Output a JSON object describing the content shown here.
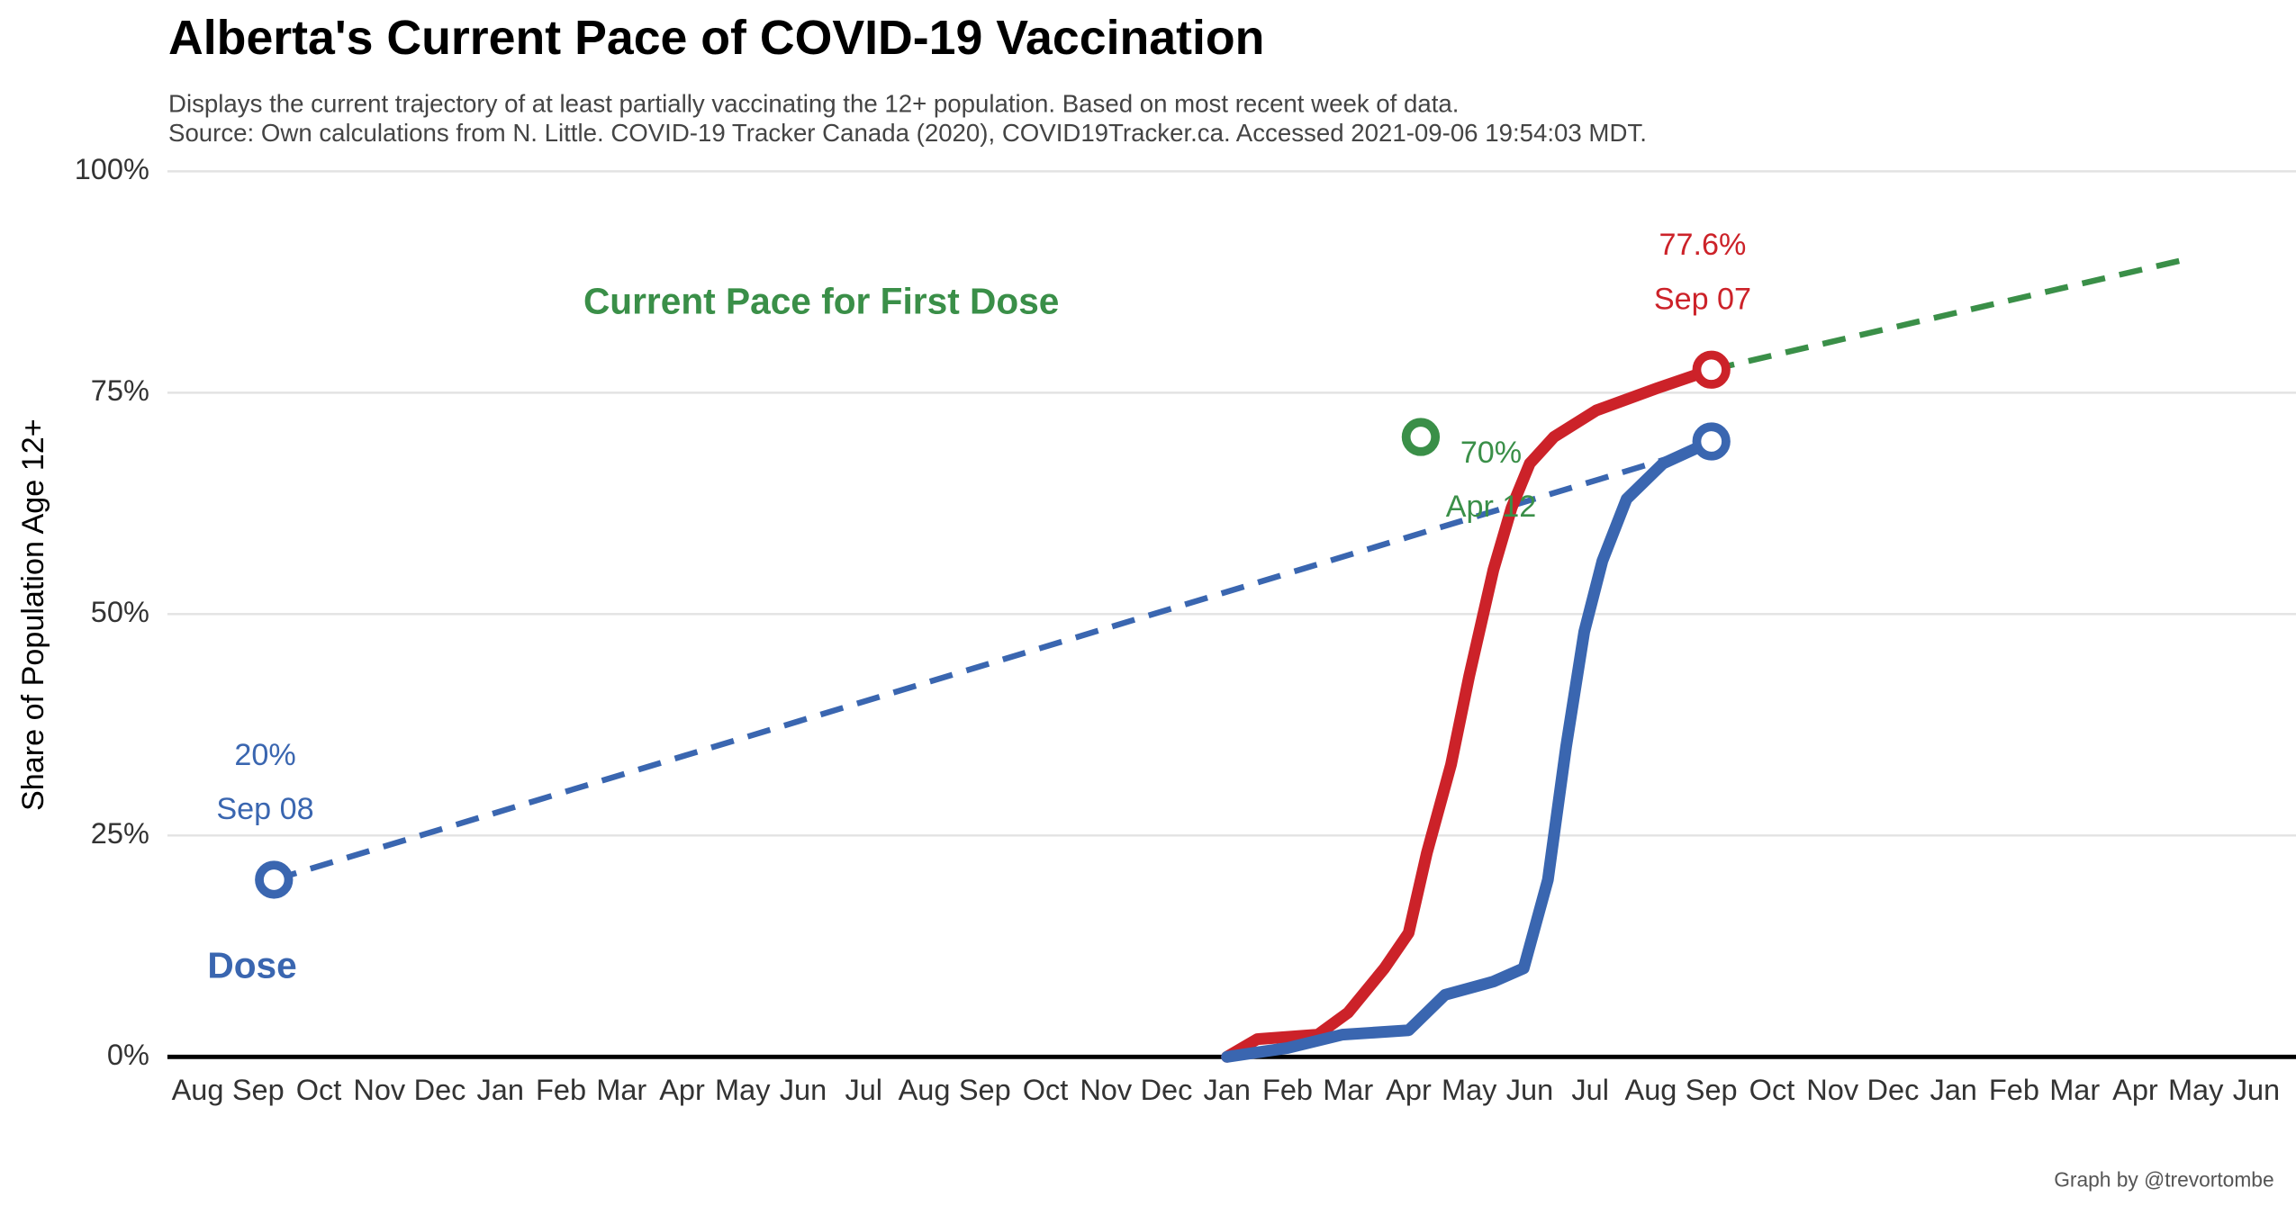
{
  "chart_data": {
    "type": "line",
    "title": "Alberta's Current Pace of COVID-19 Vaccination",
    "subtitle": [
      "Displays the current trajectory of at least partially vaccinating the 12+ population. Based on most recent week of data.",
      "Source: Own calculations from N. Little. COVID-19 Tracker Canada (2020), COVID19Tracker.ca. Accessed 2021-09-06 19:54:03 MDT."
    ],
    "y_label": "Share of Population Age 12+",
    "caption": "Graph by @trevortombe",
    "annotations": [
      {
        "text": "Current Pace for First Dose",
        "color": "#3a8f48",
        "x": 10.3,
        "y": 85
      },
      {
        "text": "Dose",
        "color": "#3a66b0",
        "x": 0.9,
        "y": 10
      }
    ],
    "xlim": [
      -0.5,
      34.9
    ],
    "ylim": [
      0,
      100
    ],
    "xticks": [
      {
        "value": 0,
        "label": "Aug"
      },
      {
        "value": 1,
        "label": "Sep"
      },
      {
        "value": 2,
        "label": "Oct"
      },
      {
        "value": 3,
        "label": "Nov"
      },
      {
        "value": 4,
        "label": "Dec"
      },
      {
        "value": 5,
        "label": "Jan"
      },
      {
        "value": 6,
        "label": "Feb"
      },
      {
        "value": 7,
        "label": "Mar"
      },
      {
        "value": 8,
        "label": "Apr"
      },
      {
        "value": 9,
        "label": "May"
      },
      {
        "value": 10,
        "label": "Jun"
      },
      {
        "value": 11,
        "label": "Jul"
      },
      {
        "value": 12,
        "label": "Aug"
      },
      {
        "value": 13,
        "label": "Sep"
      },
      {
        "value": 14,
        "label": "Oct"
      },
      {
        "value": 15,
        "label": "Nov"
      },
      {
        "value": 16,
        "label": "Dec"
      },
      {
        "value": 17,
        "label": "Jan"
      },
      {
        "value": 18,
        "label": "Feb"
      },
      {
        "value": 19,
        "label": "Mar"
      },
      {
        "value": 20,
        "label": "Apr"
      },
      {
        "value": 21,
        "label": "May"
      },
      {
        "value": 22,
        "label": "Jun"
      },
      {
        "value": 23,
        "label": "Jul"
      },
      {
        "value": 24,
        "label": "Aug"
      },
      {
        "value": 25,
        "label": "Sep"
      },
      {
        "value": 26,
        "label": "Oct"
      },
      {
        "value": 27,
        "label": "Nov"
      },
      {
        "value": 28,
        "label": "Dec"
      },
      {
        "value": 29,
        "label": "Jan"
      },
      {
        "value": 30,
        "label": "Feb"
      },
      {
        "value": 31,
        "label": "Mar"
      },
      {
        "value": 32,
        "label": "Apr"
      },
      {
        "value": 33,
        "label": "May"
      },
      {
        "value": 34,
        "label": "Jun"
      }
    ],
    "yticks": [
      {
        "value": 0,
        "label": "0%"
      },
      {
        "value": 25,
        "label": "25%"
      },
      {
        "value": 50,
        "label": "50%"
      },
      {
        "value": 75,
        "label": "75%"
      },
      {
        "value": 100,
        "label": "100%"
      }
    ],
    "grid": true,
    "series": [
      {
        "color": "#cc2229",
        "x": [
          17.0,
          17.5,
          18.5,
          19.0,
          19.6,
          20.0,
          20.1,
          20.3,
          20.7,
          21.0,
          21.4,
          21.7,
          22.0,
          22.4,
          23.1,
          24.1,
          25.0
        ],
        "values": [
          0,
          2,
          2.5,
          5,
          10,
          14,
          17,
          23,
          33,
          43,
          55,
          62,
          67,
          70,
          73,
          75.5,
          77.6
        ]
      },
      {
        "color": "#3a66b0",
        "x": [
          17.0,
          18.0,
          18.9,
          20.0,
          20.6,
          21.4,
          21.9,
          22.3,
          22.6,
          22.9,
          23.2,
          23.6,
          24.2,
          25.0
        ],
        "values": [
          0,
          1,
          2.5,
          3,
          7,
          8.5,
          10,
          20,
          35,
          48,
          56,
          63,
          67,
          69.5
        ]
      }
    ],
    "projections": [
      {
        "color": "#3a8f48",
        "x": [
          25.0,
          32.8
        ],
        "values": [
          77.6,
          90
        ]
      },
      {
        "color": "#3a66b0",
        "x": [
          1.26,
          24.3
        ],
        "values": [
          20,
          67.6
        ]
      }
    ],
    "points": [
      {
        "color": "#cc2229",
        "x": 25.0,
        "y": 77.6,
        "value_label": "77.6%",
        "date_label": "Sep 07"
      },
      {
        "color": "#3a66b0",
        "x": 25.0,
        "y": 69.5
      },
      {
        "color": "#3a8f48",
        "x": 20.2,
        "y": 70,
        "value_label": "70%",
        "date_label": "Apr 12"
      },
      {
        "color": "#3a66b0",
        "x": 1.26,
        "y": 20,
        "value_label": "20%",
        "date_label": "Sep 08"
      }
    ]
  }
}
